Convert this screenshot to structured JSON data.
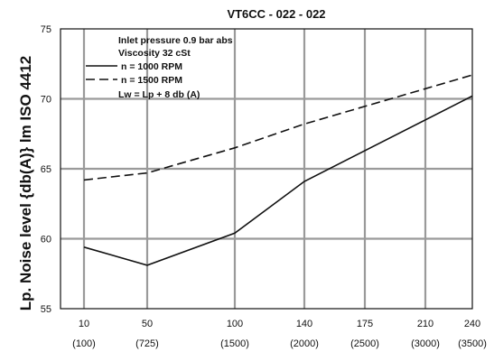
{
  "chart_data": {
    "type": "line",
    "title": "VT6CC - 022 - 022",
    "ylabel": "Lp. Noise level {db(A)} lm ISO 4412",
    "xlabel": "",
    "categories": [
      "10",
      "50",
      "100",
      "140",
      "175",
      "210",
      "240"
    ],
    "category_sublabels": [
      "(100)",
      "(725)",
      "(1500)",
      "(2000)",
      "(2500)",
      "(3000)",
      "(3500)"
    ],
    "ylim": [
      55,
      75
    ],
    "yticks": [
      55,
      60,
      65,
      70,
      75
    ],
    "grid": true,
    "legend_position": "top-left",
    "annotations": [
      "Inlet pressure   0.9 bar abs",
      "Viscosity   32 cSt"
    ],
    "legend_footer": "Lw = Lp + 8 db (A)",
    "series": [
      {
        "name": "n  = 1000 RPM",
        "style": "solid",
        "points": [
          [
            10,
            59.4
          ],
          [
            50,
            58.1
          ],
          [
            100,
            60.4
          ],
          [
            140,
            64.1
          ],
          [
            240,
            70.2
          ]
        ]
      },
      {
        "name": "n  = 1500 RPM",
        "style": "dashed",
        "points": [
          [
            10,
            64.2
          ],
          [
            50,
            64.7
          ],
          [
            100,
            66.5
          ],
          [
            140,
            68.2
          ],
          [
            240,
            71.7
          ]
        ]
      }
    ]
  }
}
